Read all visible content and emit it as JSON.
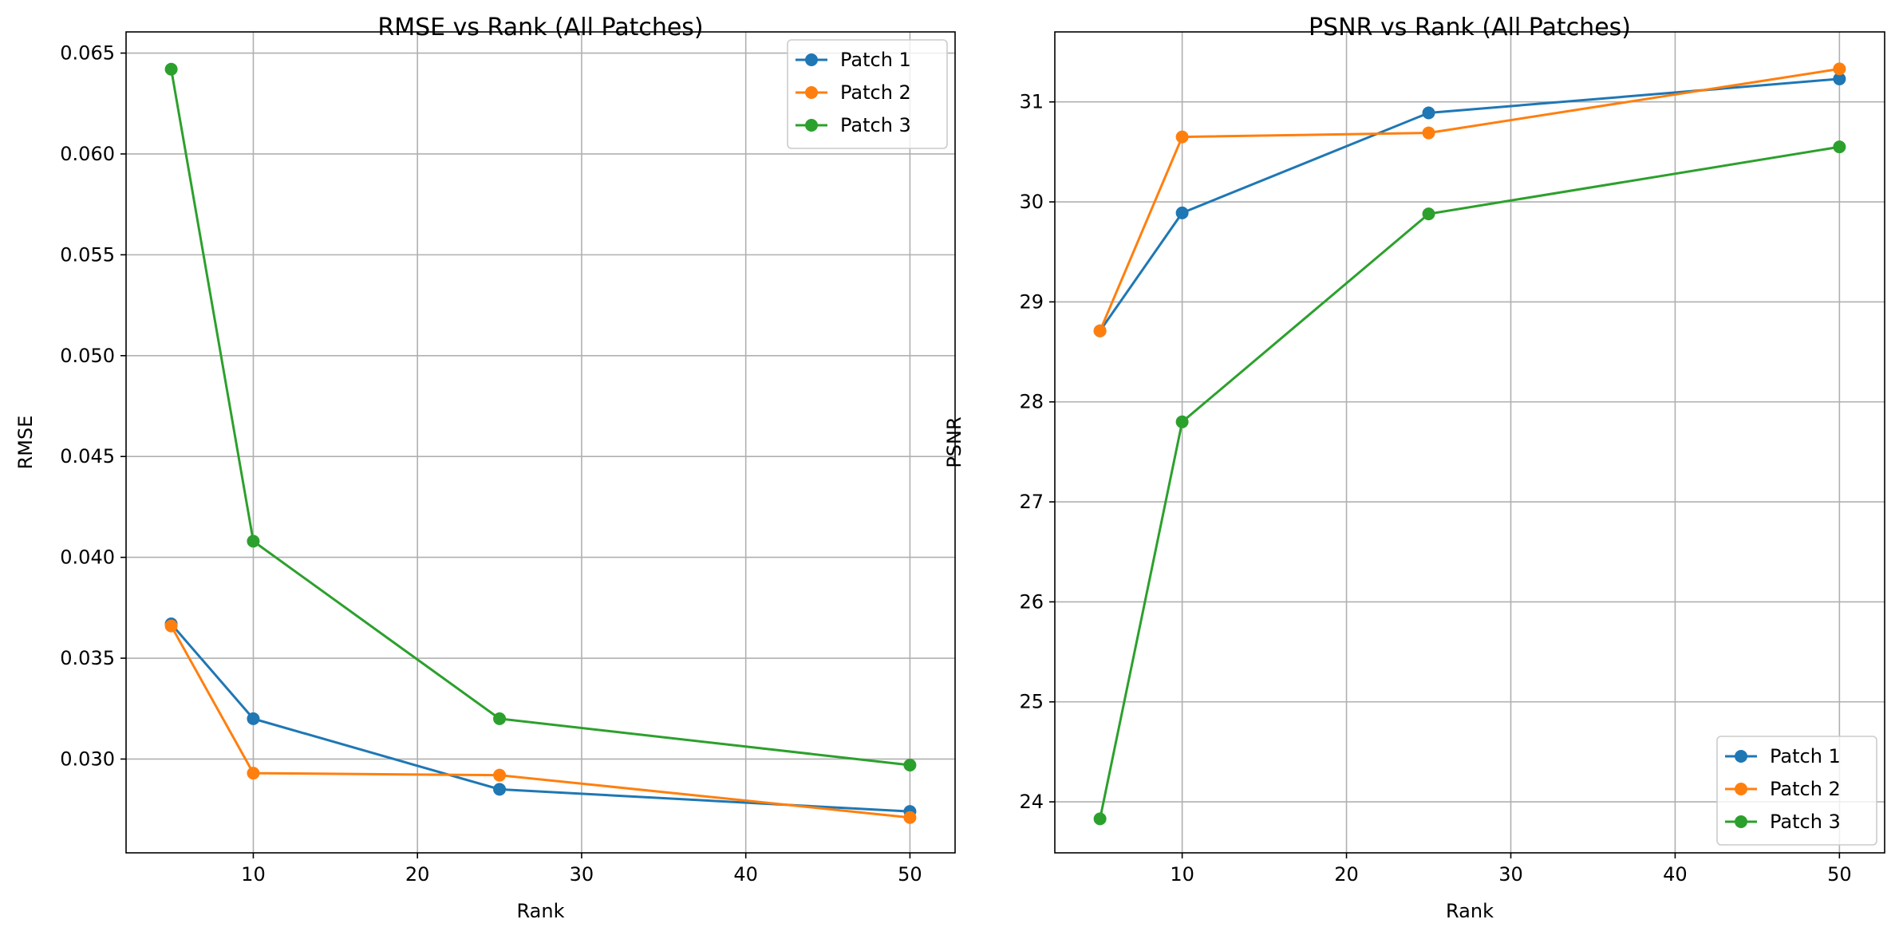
{
  "colors": {
    "patch1": "#1f77b4",
    "patch2": "#ff7f0e",
    "patch3": "#2ca02c"
  },
  "chart_data": [
    {
      "type": "line",
      "title": "RMSE vs Rank (All Patches)",
      "xlabel": "Rank",
      "ylabel": "RMSE",
      "x": [
        5,
        10,
        25,
        50
      ],
      "xlim": [
        2.25,
        52.75
      ],
      "ylim": [
        0.02535,
        0.06605
      ],
      "xticks": [
        10,
        20,
        30,
        40,
        50
      ],
      "yticks": [
        0.03,
        0.035,
        0.04,
        0.045,
        0.05,
        0.055,
        0.06,
        0.065
      ],
      "ytick_labels": [
        "0.030",
        "0.035",
        "0.040",
        "0.045",
        "0.050",
        "0.055",
        "0.060",
        "0.065"
      ],
      "grid": true,
      "legend_position": "top-right",
      "series": [
        {
          "name": "Patch 1",
          "color": "#1f77b4",
          "values": [
            0.0367,
            0.032,
            0.0285,
            0.0274
          ]
        },
        {
          "name": "Patch 2",
          "color": "#ff7f0e",
          "values": [
            0.0366,
            0.0293,
            0.0292,
            0.0271
          ]
        },
        {
          "name": "Patch 3",
          "color": "#2ca02c",
          "values": [
            0.0642,
            0.0408,
            0.032,
            0.0297
          ]
        }
      ]
    },
    {
      "type": "line",
      "title": "PSNR vs Rank (All Patches)",
      "xlabel": "Rank",
      "ylabel": "PSNR",
      "x": [
        5,
        10,
        25,
        50
      ],
      "xlim": [
        2.25,
        52.75
      ],
      "ylim": [
        23.49,
        31.7
      ],
      "xticks": [
        10,
        20,
        30,
        40,
        50
      ],
      "yticks": [
        24,
        25,
        26,
        27,
        28,
        29,
        30,
        31
      ],
      "ytick_labels": [
        "24",
        "25",
        "26",
        "27",
        "28",
        "29",
        "30",
        "31"
      ],
      "grid": true,
      "legend_position": "bottom-right",
      "series": [
        {
          "name": "Patch 1",
          "color": "#1f77b4",
          "values": [
            28.71,
            29.89,
            30.89,
            31.23
          ]
        },
        {
          "name": "Patch 2",
          "color": "#ff7f0e",
          "values": [
            28.71,
            30.65,
            30.69,
            31.33
          ]
        },
        {
          "name": "Patch 3",
          "color": "#2ca02c",
          "values": [
            23.83,
            27.8,
            29.88,
            30.55
          ]
        }
      ]
    }
  ]
}
